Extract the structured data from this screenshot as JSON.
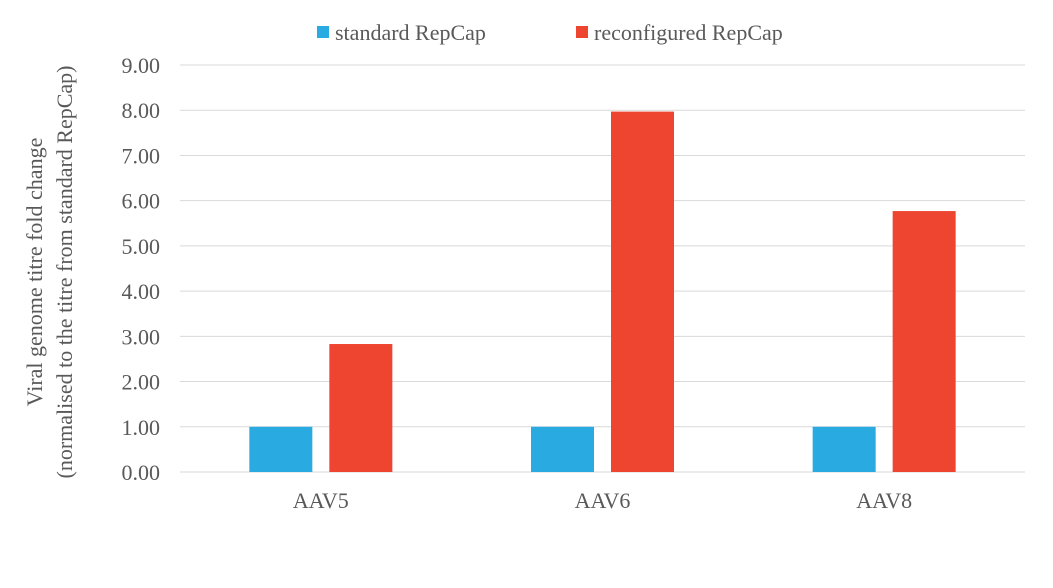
{
  "chart_data": {
    "type": "bar",
    "categories": [
      "AAV5",
      "AAV6",
      "AAV8"
    ],
    "series": [
      {
        "name": "standard RepCap",
        "values": [
          1.0,
          1.0,
          1.0
        ],
        "color": "#29ABE2"
      },
      {
        "name": "reconfigured RepCap",
        "values": [
          2.83,
          7.97,
          5.77
        ],
        "color": "#EE4530"
      }
    ],
    "ylabel_line1": "Viral genome titre fold change",
    "ylabel_line2": "(normalised to the titre from standard RepCap)",
    "ylim": [
      0,
      9
    ],
    "yticks": [
      "0.00",
      "1.00",
      "2.00",
      "3.00",
      "4.00",
      "5.00",
      "6.00",
      "7.00",
      "8.00",
      "9.00"
    ],
    "grid": true,
    "legend_position": "top-center"
  }
}
